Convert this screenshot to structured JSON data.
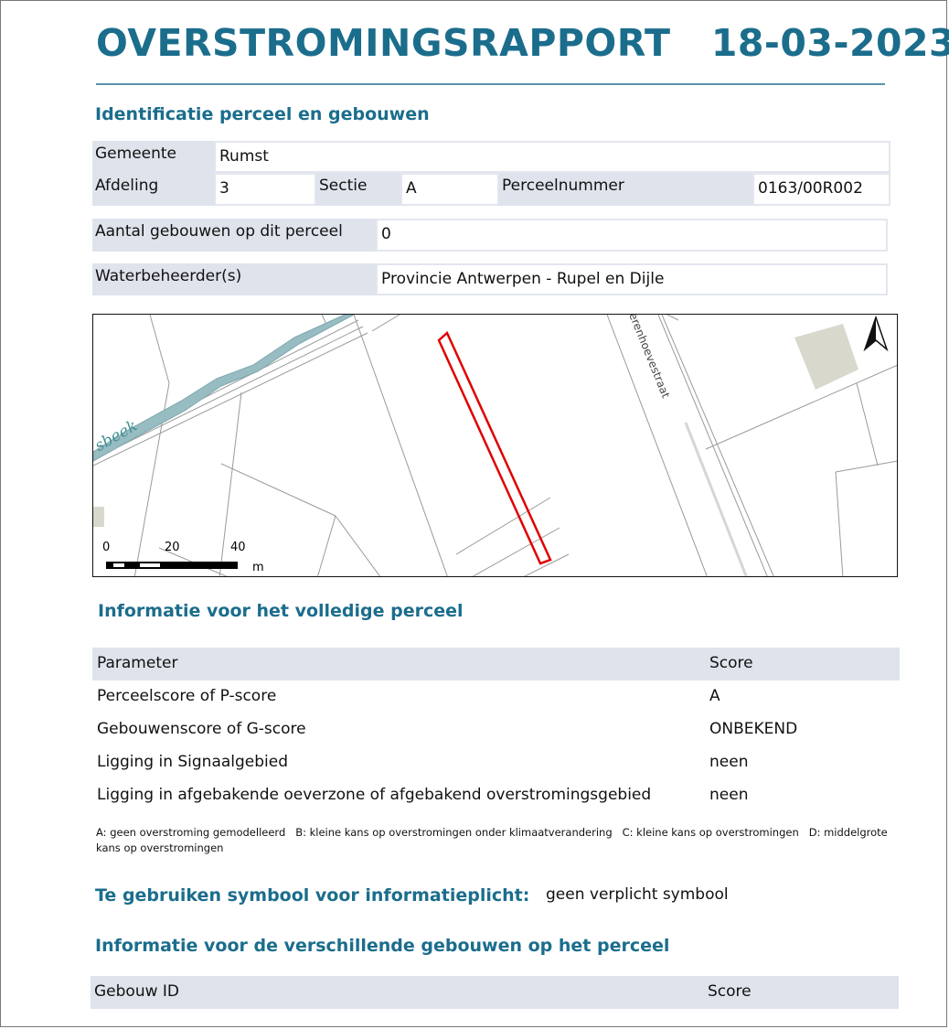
{
  "header": {
    "title": "OVERSTROMINGSRAPPORT",
    "date": "18-03-2023"
  },
  "identification": {
    "heading": "Identificatie perceel en gebouwen",
    "gemeente_label": "Gemeente",
    "gemeente": "Rumst",
    "afdeling_label": "Afdeling",
    "afdeling": "3",
    "sectie_label": "Sectie",
    "sectie": "A",
    "perceelnummer_label": "Perceelnummer",
    "perceelnummer": "0163/00R002",
    "aantal_label": "Aantal gebouwen op dit perceel",
    "aantal": "0",
    "waterbeheerder_label": "Waterbeheerder(s)",
    "waterbeheerder": "Provincie Antwerpen - Rupel en Dijle"
  },
  "map": {
    "creek_label": "sbeek",
    "street_label": "erenhoevestraat",
    "scale": {
      "ticks": [
        "0",
        "20",
        "40"
      ],
      "unit": "m"
    },
    "parcel_color": "#e00000",
    "north_icon": "north-arrow-icon"
  },
  "parcel_info": {
    "heading": "Informatie voor het volledige perceel",
    "columns": [
      "Parameter",
      "Score"
    ],
    "rows": [
      [
        "Perceelscore of P-score",
        "A"
      ],
      [
        "Gebouwenscore of G-score",
        "ONBEKEND"
      ],
      [
        "Ligging in Signaalgebied",
        "neen"
      ],
      [
        "Ligging in afgebakende oeverzone of afgebakend overstromingsgebied",
        "neen"
      ]
    ],
    "footnote": "A: geen overstroming gemodelleerd   B: kleine kans op overstromingen onder klimaatverandering   C: kleine kans op overstromingen   D: middelgrote kans op overstromingen"
  },
  "symbol": {
    "heading": "Te gebruiken symbool voor informatieplicht:",
    "value": "geen verplicht symbool"
  },
  "buildings": {
    "heading": "Informatie voor de verschillende gebouwen op het perceel",
    "columns": [
      "Gebouw ID",
      "Score"
    ]
  }
}
